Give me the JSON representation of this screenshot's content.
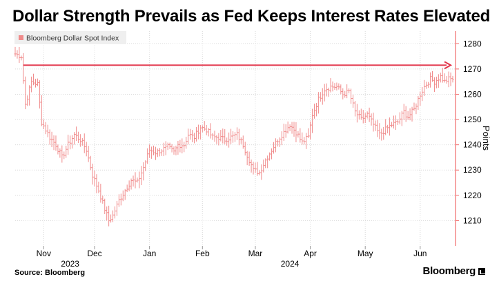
{
  "page": {
    "title": "Dollar Strength Prevails as Fed Keeps Interest Rates Elevated",
    "source": "Source: Bloomberg",
    "brand": "Bloomberg",
    "brand_icon": "bloomberg-logo-icon"
  },
  "colors": {
    "series": "#f08a8a",
    "axis": "#f06a6a",
    "arrow": "#e2354a",
    "grid": "#d9d9d9",
    "text": "#000000"
  },
  "chart_data": {
    "type": "ohlc",
    "title": "Dollar Strength Prevails as Fed Keeps Interest Rates Elevated",
    "legend": [
      "Bloomberg Dollar Spot Index"
    ],
    "legend_placement": "top-left",
    "ylabel": "Points",
    "xlabel": "",
    "ylim": [
      1200,
      1285
    ],
    "yticks": [
      1210,
      1220,
      1230,
      1240,
      1250,
      1260,
      1270,
      1280
    ],
    "xlim": [
      0,
      215
    ],
    "xticks": [
      {
        "label": "Nov",
        "x": 14
      },
      {
        "label": "Dec",
        "x": 39
      },
      {
        "label": "Jan",
        "x": 66
      },
      {
        "label": "Feb",
        "x": 92
      },
      {
        "label": "Mar",
        "x": 118
      },
      {
        "label": "Apr",
        "x": 145
      },
      {
        "label": "May",
        "x": 172
      },
      {
        "label": "Jun",
        "x": 199
      }
    ],
    "year_labels": [
      {
        "label": "2023",
        "x": 27
      },
      {
        "label": "2024",
        "x": 135
      }
    ],
    "grid": true,
    "annotation": {
      "type": "arrow",
      "from": [
        4,
        1271.5
      ],
      "to": [
        214,
        1271.5
      ]
    },
    "anchors": [
      [
        0,
        1276
      ],
      [
        3,
        1275
      ],
      [
        5,
        1256
      ],
      [
        8,
        1265
      ],
      [
        11,
        1264
      ],
      [
        13,
        1249
      ],
      [
        17,
        1243
      ],
      [
        20,
        1240
      ],
      [
        23,
        1235
      ],
      [
        26,
        1240
      ],
      [
        29,
        1244
      ],
      [
        32,
        1242
      ],
      [
        35,
        1238
      ],
      [
        38,
        1228
      ],
      [
        41,
        1222
      ],
      [
        43,
        1217
      ],
      [
        46,
        1210
      ],
      [
        48,
        1212
      ],
      [
        51,
        1218
      ],
      [
        54,
        1222
      ],
      [
        57,
        1226
      ],
      [
        60,
        1225
      ],
      [
        63,
        1231
      ],
      [
        66,
        1238
      ],
      [
        69,
        1237
      ],
      [
        72,
        1238
      ],
      [
        75,
        1239
      ],
      [
        78,
        1237
      ],
      [
        80,
        1240
      ],
      [
        83,
        1240
      ],
      [
        85,
        1244
      ],
      [
        88,
        1243
      ],
      [
        91,
        1247
      ],
      [
        94,
        1246
      ],
      [
        97,
        1243
      ],
      [
        100,
        1243
      ],
      [
        103,
        1242
      ],
      [
        106,
        1243
      ],
      [
        109,
        1244
      ],
      [
        112,
        1240
      ],
      [
        114,
        1236
      ],
      [
        117,
        1230
      ],
      [
        120,
        1229
      ],
      [
        123,
        1234
      ],
      [
        126,
        1238
      ],
      [
        129,
        1242
      ],
      [
        132,
        1245
      ],
      [
        135,
        1248
      ],
      [
        138,
        1245
      ],
      [
        141,
        1241
      ],
      [
        144,
        1243
      ],
      [
        146,
        1252
      ],
      [
        149,
        1258
      ],
      [
        152,
        1262
      ],
      [
        155,
        1263
      ],
      [
        158,
        1263
      ],
      [
        161,
        1260
      ],
      [
        164,
        1261
      ],
      [
        167,
        1253
      ],
      [
        170,
        1250
      ],
      [
        173,
        1252
      ],
      [
        176,
        1248
      ],
      [
        179,
        1244
      ],
      [
        182,
        1246
      ],
      [
        185,
        1248
      ],
      [
        188,
        1249
      ],
      [
        191,
        1253
      ],
      [
        193,
        1251
      ],
      [
        196,
        1254
      ],
      [
        199,
        1260
      ],
      [
        201,
        1263
      ],
      [
        204,
        1266
      ],
      [
        206,
        1265
      ],
      [
        209,
        1267
      ],
      [
        211,
        1265
      ],
      [
        213,
        1266
      ]
    ]
  }
}
